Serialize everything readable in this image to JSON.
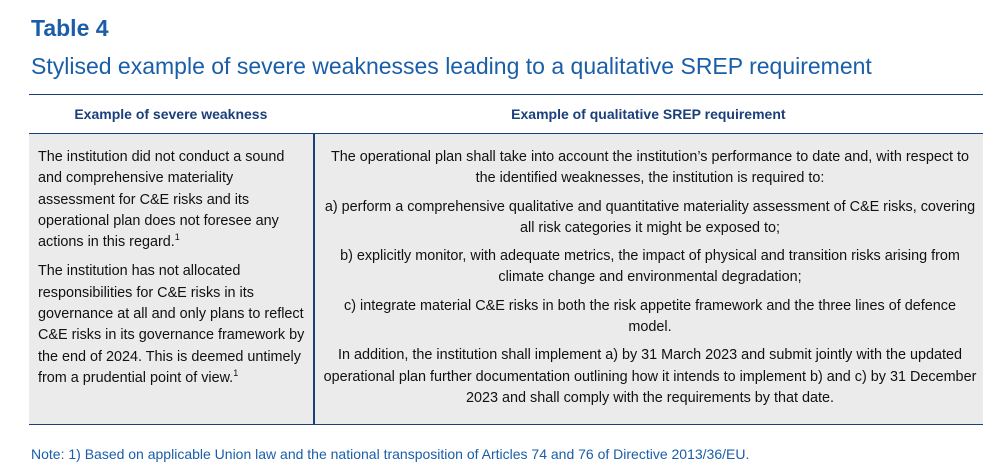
{
  "heading": {
    "title": "Table 4",
    "subtitle": "Stylised example of severe weaknesses leading to a qualitative SREP requirement"
  },
  "table": {
    "headers": {
      "left": "Example of severe weakness",
      "right": "Example of qualitative SREP requirement"
    },
    "left_paragraphs": [
      {
        "text": "The institution did not conduct a sound and comprehensive materiality assessment for C&E risks and its operational plan does not foresee any actions in this regard.",
        "footnote": "1"
      },
      {
        "text": "The institution has not allocated responsibilities for C&E risks in its governance at all and only plans to reflect C&E risks in its governance framework by the end of 2024. This is deemed untimely from a prudential point of view.",
        "footnote": "1"
      }
    ],
    "right_paragraphs": [
      "The operational plan shall take into account the institution’s performance to date and, with respect to the identified weaknesses, the institution is required to:",
      "a) perform a comprehensive qualitative and quantitative materiality assessment of C&E risks, covering all risk categories it might be exposed to;",
      "b) explicitly monitor, with adequate metrics, the impact of physical and transition risks arising from climate change and environmental degradation;",
      "c) integrate material C&E risks in both the risk appetite framework and the three lines of defence model.",
      "In addition, the institution shall implement a) by 31 March 2023 and submit jointly with the updated operational plan further documentation outlining how it intends to implement b) and c) by 31 December 2023 and shall comply with the requirements by that date."
    ]
  },
  "note": "Note: 1) Based on applicable Union law and the national transposition of Articles 74 and 76 of Directive 2013/36/EU.",
  "colors": {
    "accent": "#1a5ea8",
    "border": "#1a3f7a",
    "cell_background": "#ebebeb"
  }
}
